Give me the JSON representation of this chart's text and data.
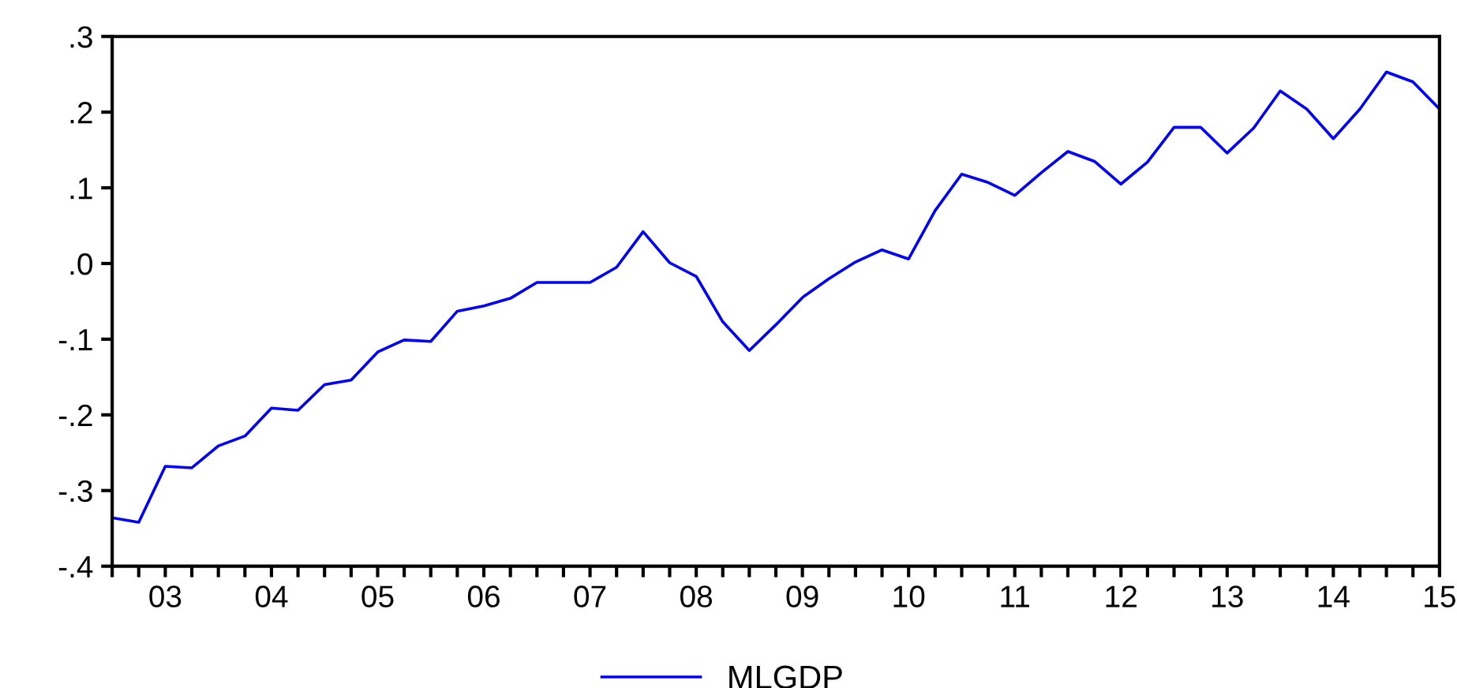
{
  "chart_data": {
    "type": "line",
    "categories": [
      null,
      null,
      "03",
      null,
      null,
      null,
      "04",
      null,
      null,
      null,
      "05",
      null,
      null,
      null,
      "06",
      null,
      null,
      null,
      "07",
      null,
      null,
      null,
      "08",
      null,
      null,
      null,
      "09",
      null,
      null,
      null,
      "10",
      null,
      null,
      null,
      "11",
      null,
      null,
      null,
      "12",
      null,
      null,
      null,
      "13",
      null,
      null,
      null,
      "14",
      null,
      null,
      null,
      "15"
    ],
    "series": [
      {
        "name": "MLGDP",
        "color": "#0000ff",
        "values": [
          -0.336,
          -0.342,
          -0.268,
          -0.27,
          -0.241,
          -0.228,
          -0.191,
          -0.194,
          -0.16,
          -0.154,
          -0.117,
          -0.101,
          -0.103,
          -0.063,
          -0.056,
          -0.046,
          -0.025,
          -0.025,
          -0.025,
          -0.005,
          0.042,
          0.001,
          -0.017,
          -0.077,
          -0.115,
          -0.081,
          -0.045,
          -0.02,
          0.002,
          0.018,
          0.006,
          0.07,
          0.118,
          0.107,
          0.09,
          0.12,
          0.148,
          0.135,
          0.105,
          0.134,
          0.18,
          0.18,
          0.146,
          0.179,
          0.228,
          0.204,
          0.165,
          0.204,
          0.253,
          0.24,
          0.204
        ]
      }
    ],
    "ylim": [
      -0.4,
      0.3
    ],
    "yticks": [
      {
        "value": -0.4,
        "label": "-.4"
      },
      {
        "value": -0.3,
        "label": "-.3"
      },
      {
        "value": -0.2,
        "label": "-.2"
      },
      {
        "value": -0.1,
        "label": "-.1"
      },
      {
        "value": 0,
        "label": ".0"
      },
      {
        "value": 0.1,
        "label": ".1"
      },
      {
        "value": 0.2,
        "label": ".2"
      },
      {
        "value": 0.3,
        "label": ".3"
      }
    ],
    "grid": false,
    "legend": "bottom",
    "marker": "none",
    "line_style": "solid"
  }
}
